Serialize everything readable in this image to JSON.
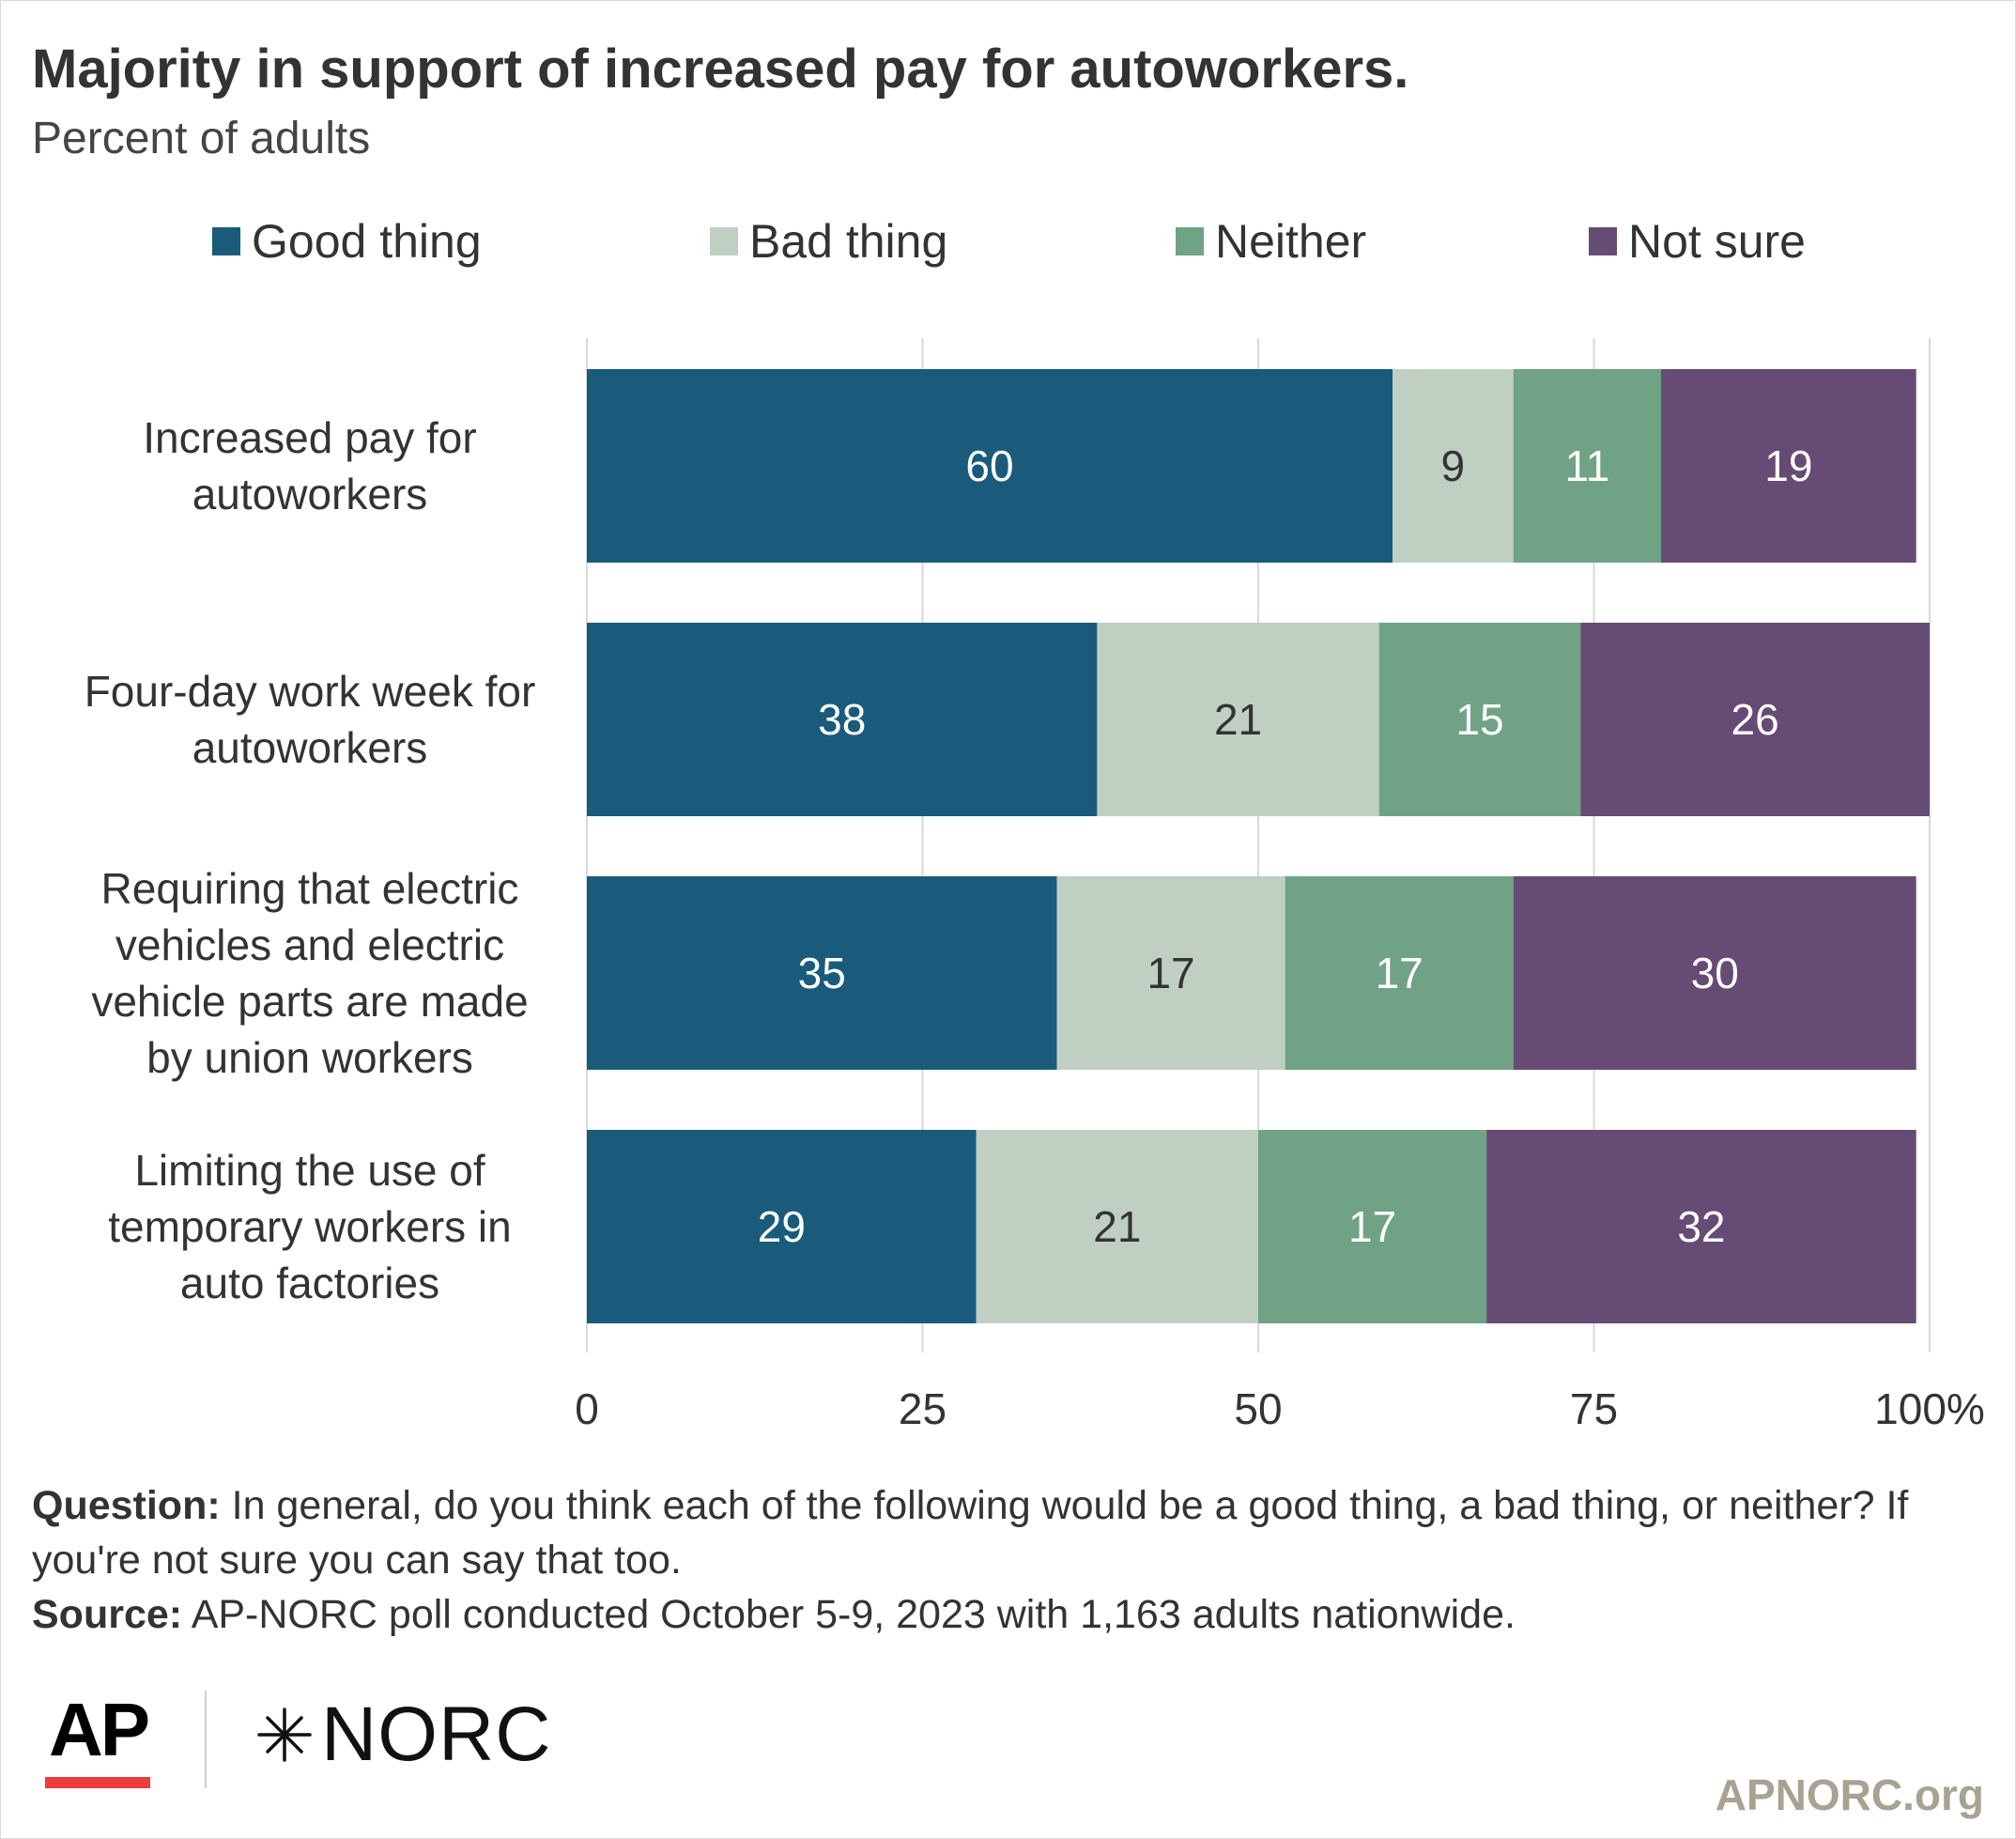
{
  "header": {
    "title": "Majority in support of increased pay for autoworkers.",
    "subtitle": "Percent of adults"
  },
  "colors": {
    "good": "#1a5b7b",
    "bad": "#bfd0c3",
    "neither": "#70a286",
    "not_sure": "#664b75",
    "grid": "#d9d9d9"
  },
  "chart_data": {
    "type": "bar",
    "orientation": "horizontal",
    "stacked": true,
    "categories": [
      "Increased pay for autoworkers",
      "Four-day work week for autoworkers",
      "Requiring that electric vehicles and electric vehicle parts are made by union workers",
      "Limiting the use of temporary workers in auto factories"
    ],
    "category_lines": [
      [
        "Increased pay for",
        "autoworkers"
      ],
      [
        "Four-day work week for",
        "autoworkers"
      ],
      [
        "Requiring that electric",
        "vehicles and electric",
        "vehicle parts are made",
        "by union workers"
      ],
      [
        "Limiting the use of",
        "temporary workers in",
        "auto factories"
      ]
    ],
    "series": [
      {
        "name": "Good thing",
        "values": [
          60,
          38,
          35,
          29
        ],
        "label_color": "#ffffff"
      },
      {
        "name": "Bad thing",
        "values": [
          9,
          21,
          17,
          21
        ],
        "label_color": "#333333"
      },
      {
        "name": "Neither",
        "values": [
          11,
          15,
          17,
          17
        ],
        "label_color": "#ffffff"
      },
      {
        "name": "Not sure",
        "values": [
          19,
          26,
          30,
          32
        ],
        "label_color": "#ffffff"
      }
    ],
    "xlim": [
      0,
      100
    ],
    "x_ticks": [
      0,
      25,
      50,
      75,
      100
    ],
    "x_tick_labels": [
      "0",
      "25",
      "50",
      "75",
      "100%"
    ],
    "grid": true,
    "legend_position": "top"
  },
  "notes": {
    "question_label": "Question:",
    "question_text": "In general, do you think each of the following would be a good thing, a bad thing, or neither? If you're not sure you can say that too.",
    "source_label": "Source:",
    "source_text": "AP-NORC poll conducted October 5-9, 2023 with 1,163 adults nationwide."
  },
  "branding": {
    "ap_logo": "AP",
    "norc_logo": "NORC",
    "site": "APNORC.org"
  }
}
